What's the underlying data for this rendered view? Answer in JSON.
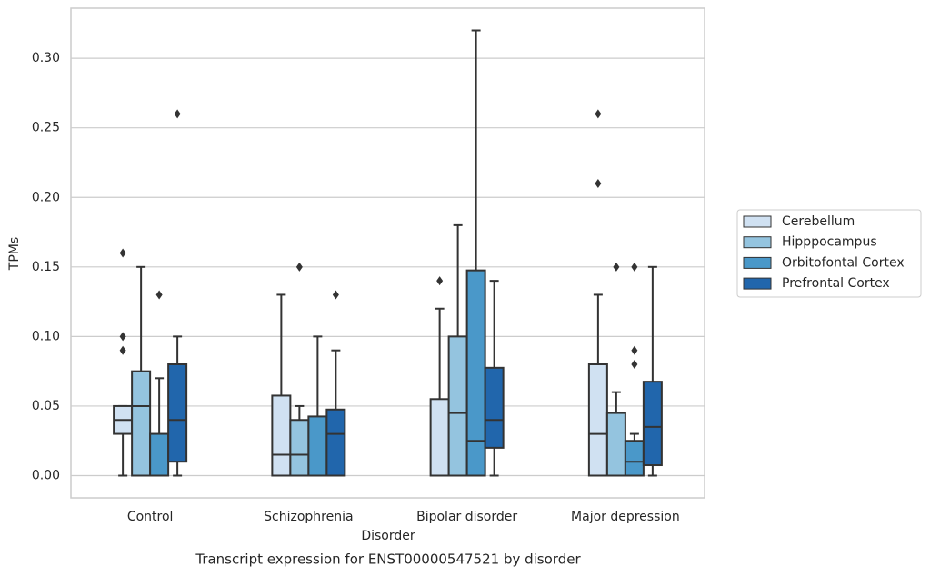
{
  "chart_data": {
    "type": "boxplot",
    "title": "Transcript expression for ENST00000547521 by disorder",
    "x_label": "Disorder",
    "y_label": "TPMs",
    "categories": [
      "Control",
      "Schizophrenia",
      "Bipolar disorder",
      "Major depression"
    ],
    "ylim": [
      -0.016,
      0.336
    ],
    "yticks": [
      {
        "value": 0,
        "label": "0.00"
      },
      {
        "value": 0.05,
        "label": "0.05"
      },
      {
        "value": 0.1,
        "label": "0.10"
      },
      {
        "value": 0.15,
        "label": "0.15"
      },
      {
        "value": 0.2,
        "label": "0.20"
      },
      {
        "value": 0.25,
        "label": "0.25"
      },
      {
        "value": 0.3,
        "label": "0.30"
      }
    ],
    "grid": true,
    "legend": "right",
    "series": [
      {
        "name": "Cerebellum",
        "color": "#d0e1f2",
        "values": [
          {
            "whislo": 0,
            "q1": 0.03,
            "med": 0.04,
            "q3": 0.05,
            "whishi": 0.05,
            "fliers": [
              0.16,
              0.1,
              0.09
            ]
          },
          {
            "whislo": 0,
            "q1": 0,
            "med": 0.015,
            "q3": 0.0575,
            "whishi": 0.13
          },
          {
            "whislo": 0,
            "q1": 0,
            "med": 0,
            "q3": 0.055,
            "whishi": 0.12,
            "fliers": [
              0.14
            ]
          },
          {
            "whislo": 0,
            "q1": 0,
            "med": 0.03,
            "q3": 0.08,
            "whishi": 0.13,
            "fliers": [
              0.21,
              0.26
            ]
          }
        ]
      },
      {
        "name": "Hipppocampus",
        "color": "#94c4df",
        "values": [
          {
            "whislo": 0,
            "q1": 0,
            "med": 0.05,
            "q3": 0.075,
            "whishi": 0.15
          },
          {
            "whislo": 0,
            "q1": 0,
            "med": 0.015,
            "q3": 0.04,
            "whishi": 0.05,
            "fliers": [
              0.15
            ]
          },
          {
            "whislo": 0,
            "q1": 0,
            "med": 0.045,
            "q3": 0.1,
            "whishi": 0.18
          },
          {
            "whislo": 0,
            "q1": 0,
            "med": 0,
            "q3": 0.045,
            "whishi": 0.06,
            "fliers": [
              0.15
            ]
          }
        ]
      },
      {
        "name": "Orbitofontal Cortex",
        "color": "#4a98c9",
        "values": [
          {
            "whislo": 0,
            "q1": 0,
            "med": 0,
            "q3": 0.03,
            "whishi": 0.07,
            "fliers": [
              0.13
            ]
          },
          {
            "whislo": 0,
            "q1": 0,
            "med": 0,
            "q3": 0.0425,
            "whishi": 0.1
          },
          {
            "whislo": 0,
            "q1": 0,
            "med": 0.025,
            "q3": 0.1475,
            "whishi": 0.32
          },
          {
            "whislo": 0,
            "q1": 0,
            "med": 0.01,
            "q3": 0.025,
            "whishi": 0.03,
            "fliers": [
              0.15,
              0.09,
              0.08
            ]
          }
        ]
      },
      {
        "name": "Prefrontal Cortex",
        "color": "#2166ac",
        "values": [
          {
            "whislo": 0,
            "q1": 0.01,
            "med": 0.04,
            "q3": 0.08,
            "whishi": 0.1,
            "fliers": [
              0.26
            ]
          },
          {
            "whislo": 0,
            "q1": 0,
            "med": 0.03,
            "q3": 0.0475,
            "whishi": 0.09,
            "fliers": [
              0.13
            ]
          },
          {
            "whislo": 0,
            "q1": 0.02,
            "med": 0.04,
            "q3": 0.0775,
            "whishi": 0.14
          },
          {
            "whislo": 0,
            "q1": 0.0075,
            "med": 0.035,
            "q3": 0.0675,
            "whishi": 0.15
          }
        ]
      }
    ]
  }
}
